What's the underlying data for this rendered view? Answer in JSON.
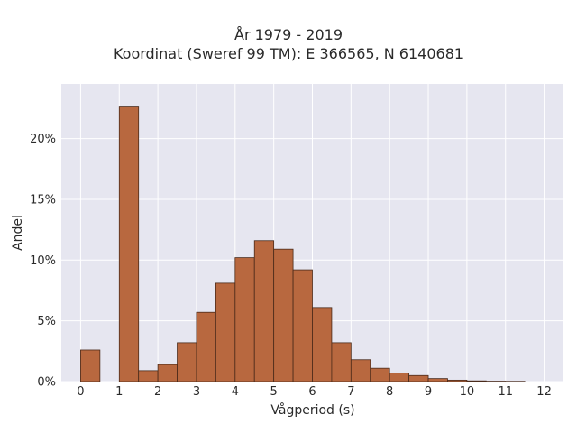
{
  "chart_data": {
    "type": "bar",
    "title_lines": [
      "År 1979 - 2019",
      "Koordinat (Sweref 99 TM): E 366565, N 6140681"
    ],
    "xlabel": "Vågperiod (s)",
    "ylabel": "Andel",
    "xlim": [
      -0.5,
      12.5
    ],
    "ylim": [
      0,
      24.5
    ],
    "xticks": [
      0,
      1,
      2,
      3,
      4,
      5,
      6,
      7,
      8,
      9,
      10,
      11,
      12
    ],
    "xtick_labels": [
      "0",
      "1",
      "2",
      "3",
      "4",
      "5",
      "6",
      "7",
      "8",
      "9",
      "10",
      "11",
      "12"
    ],
    "yticks": [
      0,
      5,
      10,
      15,
      20
    ],
    "ytick_labels": [
      "0%",
      "5%",
      "10%",
      "15%",
      "20%"
    ],
    "bin_width": 0.5,
    "bins": [
      {
        "start": 0.0,
        "value": 2.6
      },
      {
        "start": 0.5,
        "value": 0.0
      },
      {
        "start": 1.0,
        "value": 22.6
      },
      {
        "start": 1.5,
        "value": 0.9
      },
      {
        "start": 2.0,
        "value": 1.4
      },
      {
        "start": 2.5,
        "value": 3.2
      },
      {
        "start": 3.0,
        "value": 5.7
      },
      {
        "start": 3.5,
        "value": 8.1
      },
      {
        "start": 4.0,
        "value": 10.2
      },
      {
        "start": 4.5,
        "value": 11.6
      },
      {
        "start": 5.0,
        "value": 10.9
      },
      {
        "start": 5.5,
        "value": 9.2
      },
      {
        "start": 6.0,
        "value": 6.1
      },
      {
        "start": 6.5,
        "value": 3.2
      },
      {
        "start": 7.0,
        "value": 1.8
      },
      {
        "start": 7.5,
        "value": 1.1
      },
      {
        "start": 8.0,
        "value": 0.7
      },
      {
        "start": 8.5,
        "value": 0.5
      },
      {
        "start": 9.0,
        "value": 0.25
      },
      {
        "start": 9.5,
        "value": 0.12
      },
      {
        "start": 10.0,
        "value": 0.06
      },
      {
        "start": 10.5,
        "value": 0.03
      },
      {
        "start": 11.0,
        "value": 0.02
      },
      {
        "start": 11.5,
        "value": 0.0
      }
    ],
    "grid": true,
    "colors": {
      "bar_fill": "#b8683f",
      "bar_edge": "#4a2a1a",
      "plot_bg": "#e6e6f0",
      "grid": "#ffffff"
    }
  }
}
